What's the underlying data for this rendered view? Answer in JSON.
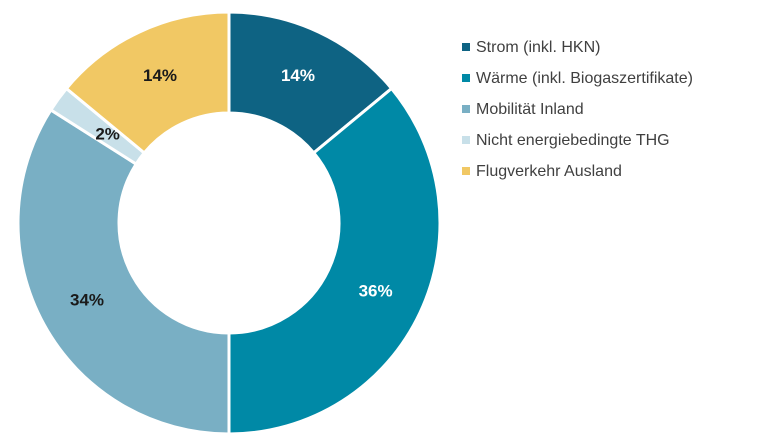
{
  "chart_data": {
    "type": "donut",
    "categories": [
      "Strom (inkl. HKN)",
      "Wärme (inkl. Biogaszertifikate)",
      "Mobilität Inland",
      "Nicht energiebedingte THG",
      "Flugverkehr Ausland"
    ],
    "values": [
      14,
      36,
      34,
      2,
      14
    ],
    "value_labels": [
      "14%",
      "36%",
      "34%",
      "2%",
      "14%"
    ],
    "colors": [
      "#0e6383",
      "#0089a6",
      "#79afc4",
      "#c8e0e9",
      "#f1c864"
    ],
    "legend": "right"
  }
}
